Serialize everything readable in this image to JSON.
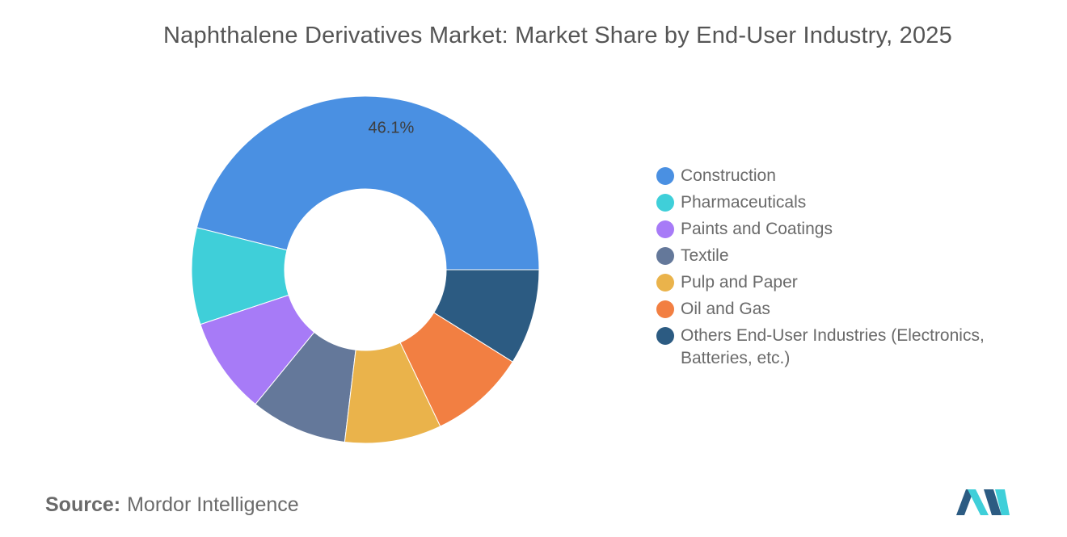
{
  "chart_data": {
    "type": "pie",
    "title": "Naphthalene Derivatives Market: Market Share by End-User Industry, 2025",
    "donut": true,
    "legend_placement": "right",
    "categories": [
      "Construction",
      "Pharmaceuticals",
      "Paints and Coatings",
      "Textile",
      "Pulp and Paper",
      "Oil and Gas",
      "Others End-User Industries (Electronics, Batteries, etc.)"
    ],
    "values": [
      46.1,
      9.0,
      9.0,
      9.0,
      9.0,
      9.0,
      8.9
    ],
    "colors": [
      "#4a90e2",
      "#3fcfd9",
      "#a77bf7",
      "#64789a",
      "#eab34b",
      "#f27f42",
      "#2c5b82"
    ],
    "data_labels": [
      "46.1%",
      "",
      "",
      "",
      "",
      "",
      ""
    ]
  },
  "source": {
    "prefix": "Source:",
    "text": "Mordor Intelligence"
  },
  "logo": {
    "icon": "mordor-intelligence-logo",
    "colors": [
      "#2c5b82",
      "#3fcfd9"
    ]
  }
}
